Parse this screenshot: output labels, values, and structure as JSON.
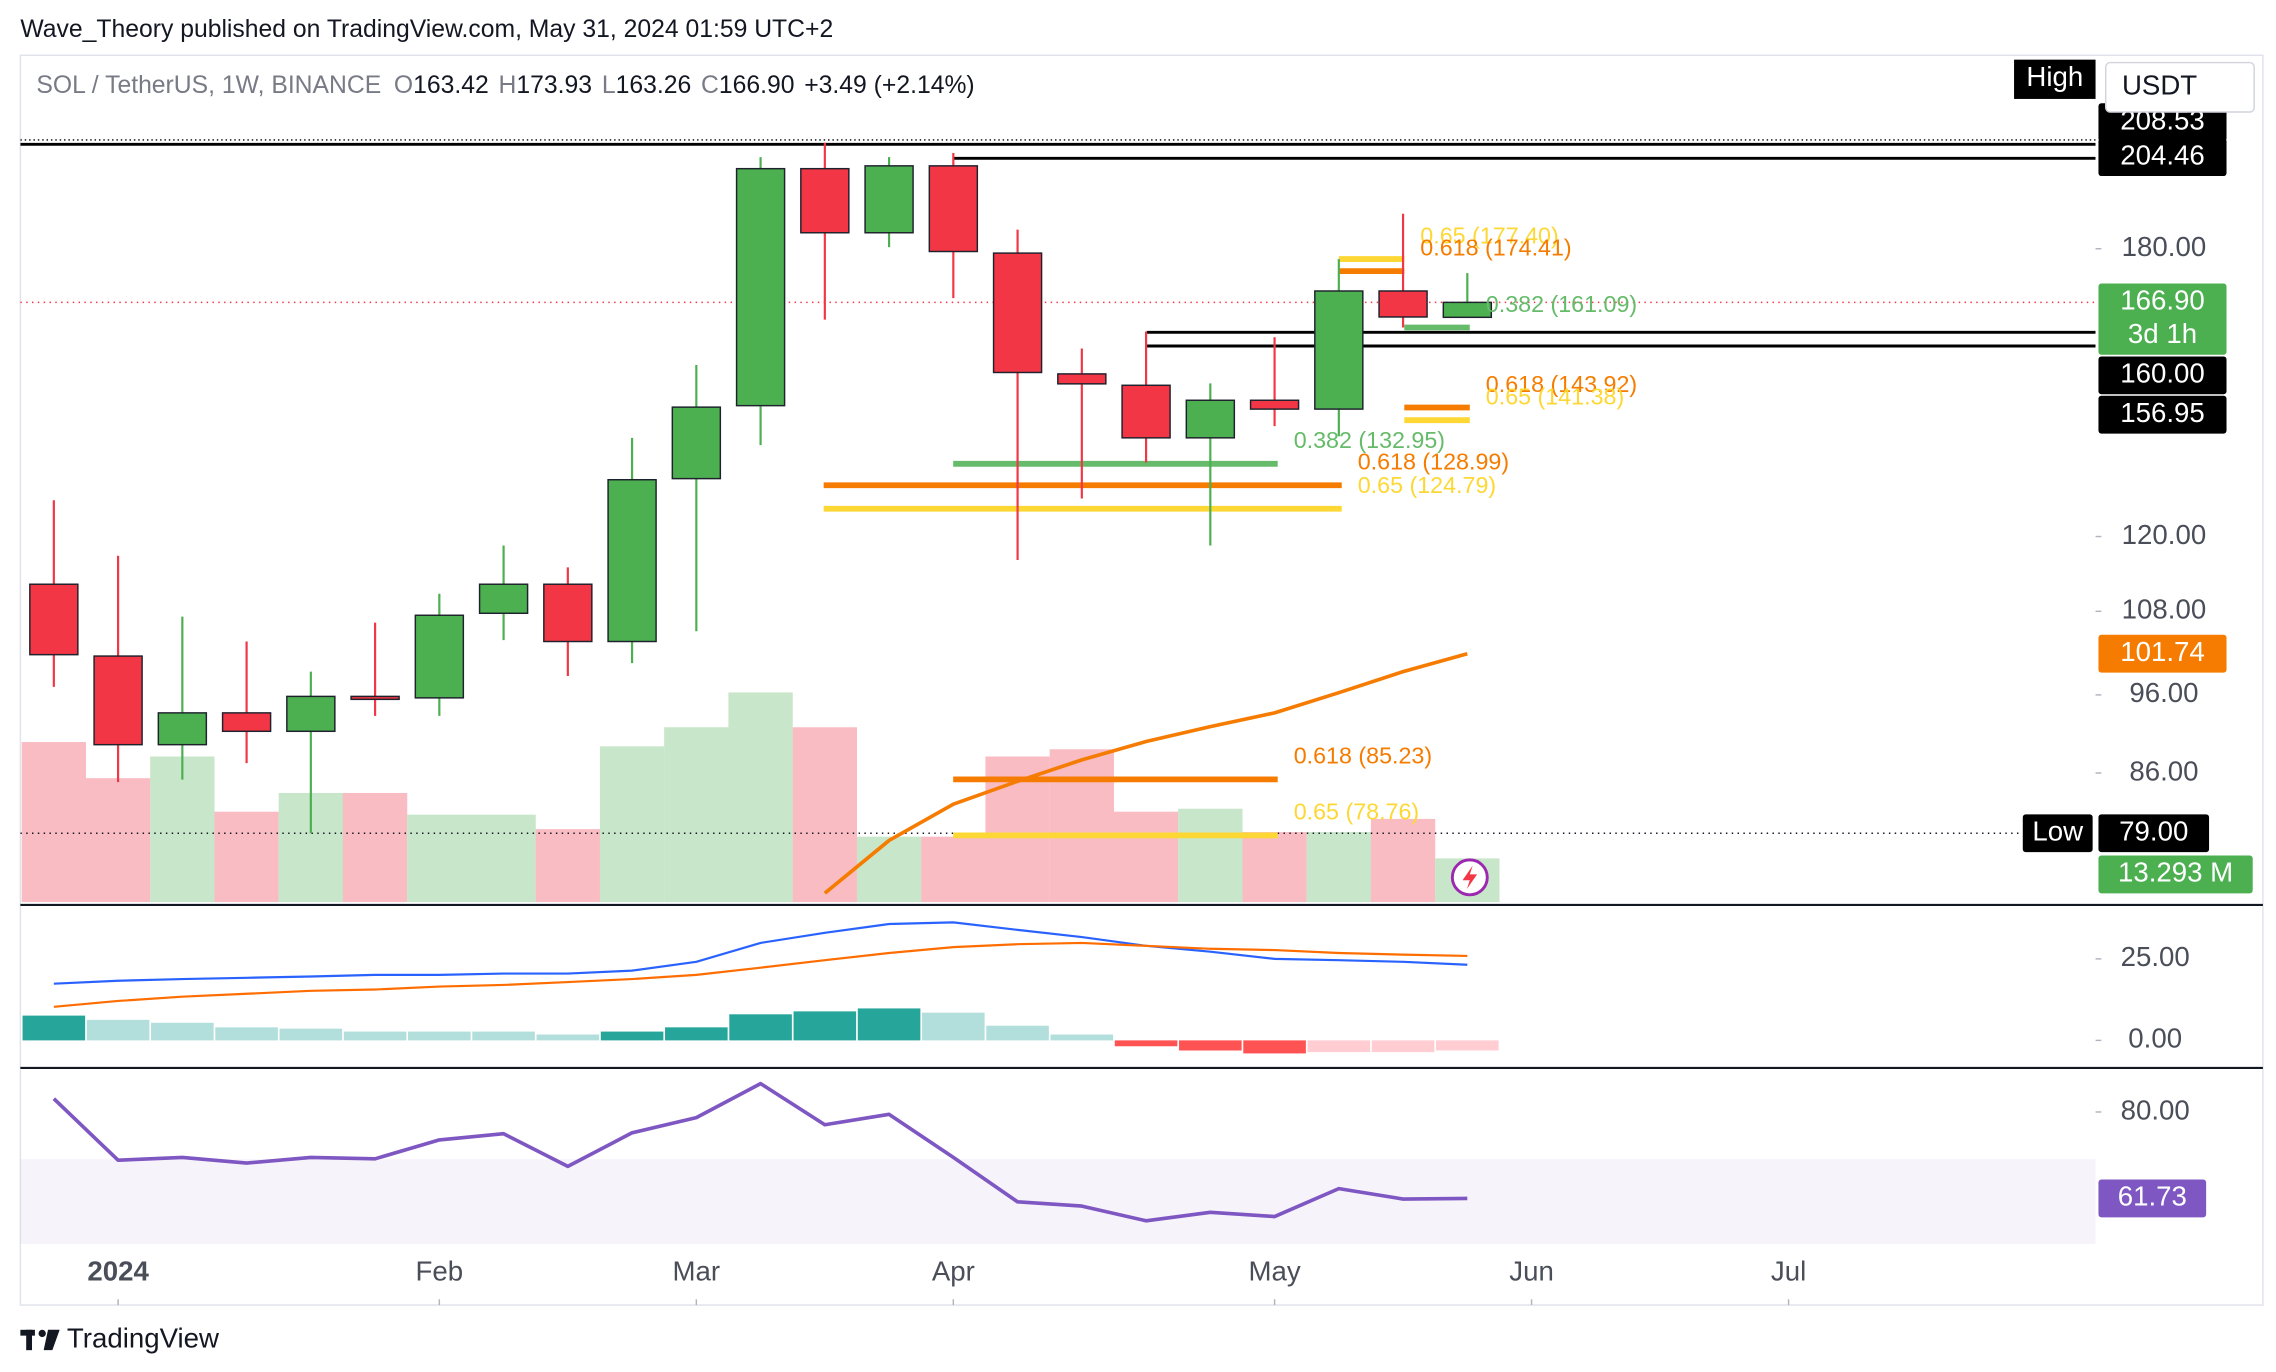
{
  "header": {
    "byline": "Wave_Theory published on TradingView.com, May 31, 2024 01:59 UTC+2",
    "symbol": "SOL / TetherUS, 1W, BINANCE",
    "ohlc_letters": [
      "O",
      "H",
      "L",
      "C"
    ],
    "change": "+3.49 (+2.14%)",
    "currency": "USDT",
    "high_tag": "High"
  },
  "chart_data": [
    {
      "type": "candlestick",
      "open": [
        112.2,
        101.4,
        89.5,
        93.6,
        91.2,
        95.8,
        95.6,
        107.7,
        112.2,
        103.5,
        130.2,
        144.3,
        201.5,
        184.1,
        202.3,
        178.9,
        150.9,
        148.5,
        137.9,
        145.4,
        143.6,
        169.6,
        163.42
      ],
      "high": [
        126.3,
        116.8,
        107.2,
        103.5,
        99.2,
        106.3,
        110.7,
        118.5,
        114.9,
        137.9,
        152.8,
        204.8,
        209.0,
        204.8,
        206.0,
        184.9,
        156.4,
        160.2,
        148.9,
        158.9,
        177.4,
        189.1,
        173.93
      ],
      "low": [
        97.1,
        84.9,
        85.2,
        87.2,
        79.0,
        93.2,
        93.2,
        103.7,
        98.6,
        100.4,
        105.0,
        136.5,
        162.9,
        180.4,
        167.9,
        116.1,
        126.6,
        133.2,
        118.5,
        140.2,
        138.2,
        161.1,
        163.26
      ],
      "close": [
        101.6,
        89.5,
        93.6,
        91.2,
        95.8,
        95.4,
        107.4,
        112.2,
        103.5,
        130.0,
        144.0,
        201.5,
        184.1,
        202.3,
        179.3,
        151.2,
        148.8,
        137.9,
        145.4,
        143.6,
        169.6,
        163.5,
        166.9
      ],
      "last_close_label": "166.90",
      "countdown": "3d 1h",
      "up_color": "#4caf50",
      "down_color": "#f23645",
      "log_scale": true,
      "ylim": [
        71.7,
        236.4
      ],
      "yticks": [
        {
          "value": 180,
          "label": "180.00"
        },
        {
          "value": 120,
          "label": "120.00"
        },
        {
          "value": 108,
          "label": "108.00"
        },
        {
          "value": 96,
          "label": "96.00"
        },
        {
          "value": 86,
          "label": "86.00"
        }
      ],
      "xticks": [
        {
          "value": 1,
          "label": "2024"
        },
        {
          "value": 6,
          "label": "Feb"
        },
        {
          "value": 10,
          "label": "Mar"
        },
        {
          "value": 14,
          "label": "Apr"
        },
        {
          "value": 19,
          "label": "May"
        },
        {
          "value": 23,
          "label": "Jun"
        },
        {
          "value": 27,
          "label": "Jul"
        }
      ],
      "levels": [
        {
          "value": 208.53,
          "label": "208.53"
        },
        {
          "value": 204.46,
          "label": "204.46"
        },
        {
          "value": 160,
          "label": "160.00"
        },
        {
          "value": 156.95,
          "label": "156.95"
        }
      ],
      "low_level": {
        "value": 79,
        "label": "79.00",
        "tag": "Low"
      },
      "fib": [
        {
          "label": "0.65 (177.40)",
          "value": 177.4,
          "color": "#fdd835"
        },
        {
          "label": "0.618 (174.41)",
          "value": 174.41,
          "color": "#f57c00"
        },
        {
          "label": "0.382 (161.09)",
          "value": 161.09,
          "color": "#66bb6a"
        },
        {
          "label": "0.618 (143.92)",
          "value": 143.92,
          "color": "#f57c00"
        },
        {
          "label": "0.65 (141.38)",
          "value": 141.38,
          "color": "#fdd835"
        },
        {
          "label": "0.382 (132.95)",
          "value": 132.95,
          "color": "#66bb6a"
        },
        {
          "label": "0.618 (128.99)",
          "value": 128.99,
          "color": "#f57c00"
        },
        {
          "label": "0.65 (124.79)",
          "value": 124.79,
          "color": "#fdd835"
        },
        {
          "label": "0.618 (85.23)",
          "value": 85.23,
          "color": "#f57c00"
        },
        {
          "label": "0.65 (78.76)",
          "value": 78.76,
          "color": "#fdd835"
        }
      ],
      "ema": {
        "color": "#f57c00",
        "values": [
          null,
          null,
          null,
          null,
          null,
          null,
          null,
          null,
          null,
          null,
          null,
          null,
          72.6,
          78.2,
          82.3,
          85.0,
          87.6,
          89.9,
          91.8,
          93.6,
          96.3,
          99.2,
          101.74
        ]
      },
      "volume": {
        "values": [
          48.7,
          37.7,
          44.3,
          27.5,
          33.2,
          33.2,
          26.6,
          26.6,
          22.2,
          47.4,
          53.2,
          63.8,
          53.2,
          19.9,
          19.9,
          44.3,
          46.5,
          27.5,
          28.4,
          21.3,
          21.3,
          25.3,
          13.293
        ],
        "last_label": "13.293 M",
        "vlim": [
          0,
          120
        ],
        "up_color": "#c8e6c9",
        "down_color": "#f9bcc3"
      }
    },
    {
      "type": "macd",
      "series": [
        {
          "color": "#2962ff",
          "values": [
            17.4,
            18.3,
            18.8,
            19.2,
            19.6,
            20.1,
            20.1,
            20.5,
            20.5,
            21.4,
            24.1,
            29.9,
            33.0,
            35.7,
            36.2,
            33.9,
            31.7,
            29.0,
            27.2,
            25.0,
            24.6,
            24.1,
            23.2
          ]
        },
        {
          "color": "#ff6d00",
          "values": [
            10.3,
            12.1,
            13.4,
            14.3,
            15.2,
            15.6,
            16.5,
            17.0,
            17.9,
            18.8,
            20.1,
            22.3,
            24.6,
            26.8,
            28.6,
            29.5,
            29.9,
            29.0,
            28.1,
            27.7,
            26.8,
            26.3,
            25.9
          ]
        }
      ],
      "histogram": {
        "values": [
          7.6,
          6.3,
          5.4,
          4.0,
          3.6,
          2.7,
          2.7,
          2.7,
          1.8,
          2.7,
          4.0,
          8.0,
          8.9,
          9.8,
          8.5,
          4.5,
          1.8,
          -1.8,
          -3.1,
          -4.0,
          -3.6,
          -3.6,
          -3.1
        ],
        "colors": [
          "#26a69a",
          "#b2dfdb",
          "#b2dfdb",
          "#b2dfdb",
          "#b2dfdb",
          "#b2dfdb",
          "#b2dfdb",
          "#b2dfdb",
          "#b2dfdb",
          "#26a69a",
          "#26a69a",
          "#26a69a",
          "#26a69a",
          "#26a69a",
          "#b2dfdb",
          "#b2dfdb",
          "#b2dfdb",
          "#ff5252",
          "#ff5252",
          "#ff5252",
          "#ffcdd2",
          "#ffcdd2",
          "#ffcdd2"
        ]
      },
      "ylim": [
        -8,
        40.2
      ],
      "yticks": [
        {
          "value": 0,
          "label": "0.00"
        },
        {
          "value": 25,
          "label": "25.00"
        }
      ]
    },
    {
      "type": "line",
      "color": "#7e57c2",
      "values": [
        82.8,
        69.8,
        70.4,
        69.2,
        70.4,
        70.1,
        74.1,
        75.4,
        68.5,
        75.6,
        78.8,
        86.0,
        77.3,
        79.5,
        70.4,
        61.0,
        60.1,
        57.0,
        58.8,
        57.9,
        63.8,
        61.6,
        61.73
      ],
      "band": [
        30,
        70
      ],
      "ylim": [
        52.1,
        88.7
      ],
      "yticks": [
        {
          "value": 80,
          "label": "80.00"
        }
      ]
    }
  ],
  "footer": {
    "brand": "TradingView"
  }
}
